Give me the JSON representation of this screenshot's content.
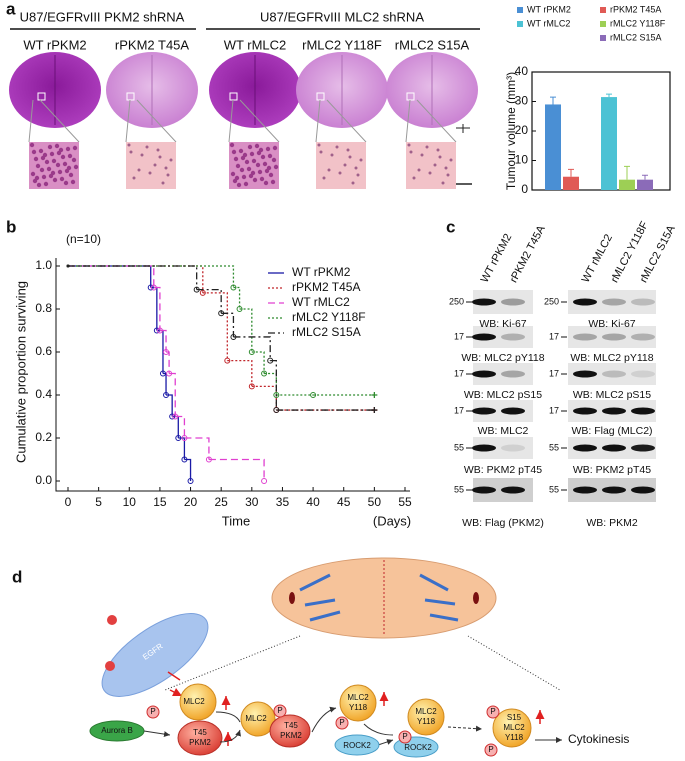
{
  "panel_labels": [
    "a",
    "b",
    "c",
    "d"
  ],
  "panel_a": {
    "groups": [
      "U87/EGFRvIII PKM2 shRNA",
      "U87/EGFRvIII MLC2 shRNA"
    ],
    "images": [
      "WT rPKM2",
      "rPKM2 T45A",
      "WT rMLC2",
      "rMLC2 Y118F",
      "rMLC2 S15A"
    ]
  },
  "chart_data": [
    {
      "type": "bar",
      "ylabel": "Tumour volume (mm³)",
      "categories": [
        null
      ],
      "series": [
        {
          "name": "WT rPKM2",
          "color": "#4a8fd4",
          "values": [
            29
          ],
          "errors": [
            2.5
          ]
        },
        {
          "name": "rPKM2 T45A",
          "color": "#e05a55",
          "values": [
            4.5
          ],
          "errors": [
            2.5
          ]
        },
        {
          "name": "WT rMLC2",
          "color": "#4cc2d4",
          "values": [
            31.5
          ],
          "errors": [
            1
          ]
        },
        {
          "name": "rMLC2 Y118F",
          "color": "#9dcf55",
          "values": [
            3.5
          ],
          "errors": [
            4.5
          ]
        },
        {
          "name": "rMLC2 S15A",
          "color": "#8b6bb8",
          "values": [
            3.5
          ],
          "errors": [
            1.5
          ]
        }
      ],
      "ylim": [
        0,
        40
      ],
      "yticks": [
        0,
        10,
        20,
        30,
        40
      ]
    },
    {
      "type": "line",
      "annotation": "(n=10)",
      "ylabel": "Cumulative proportion surviving",
      "xlabel": "Time",
      "xunit": "(Days)",
      "series": [
        {
          "name": "WT rPKM2",
          "color": "#1a1aa6",
          "linestyle": "solid",
          "x": [
            0,
            13.5,
            14.5,
            15.5,
            16,
            17,
            18,
            19,
            20
          ],
          "values": [
            1.0,
            0.9,
            0.7,
            0.5,
            0.4,
            0.3,
            0.2,
            0.1,
            0
          ]
        },
        {
          "name": "rPKM2 T45A",
          "color": "#c0262b",
          "linestyle": "dotted",
          "x": [
            0,
            22,
            26,
            30,
            34,
            50
          ],
          "values": [
            1.0,
            0.875,
            0.56,
            0.44,
            0.33,
            0.33
          ]
        },
        {
          "name": "WT rMLC2",
          "color": "#e040d0",
          "linestyle": "dashed",
          "x": [
            0,
            14,
            15,
            16,
            16.5,
            17.5,
            19,
            23,
            32
          ],
          "values": [
            1.0,
            0.9,
            0.7,
            0.6,
            0.5,
            0.3,
            0.2,
            0.1,
            0
          ]
        },
        {
          "name": "rMLC2 Y118F",
          "color": "#2e8b2e",
          "linestyle": "dotted",
          "x": [
            0,
            27,
            28,
            30,
            32,
            34,
            40,
            50
          ],
          "values": [
            1.0,
            0.9,
            0.8,
            0.6,
            0.5,
            0.4,
            0.4,
            0.4
          ]
        },
        {
          "name": "rMLC2 S15A",
          "color": "#222222",
          "linestyle": "dashdot",
          "x": [
            0,
            21,
            25,
            27,
            33,
            34,
            50
          ],
          "values": [
            1.0,
            0.89,
            0.78,
            0.67,
            0.56,
            0.33,
            0.33
          ]
        }
      ],
      "xlim": [
        0,
        55
      ],
      "xticks": [
        0,
        5,
        10,
        15,
        20,
        25,
        30,
        35,
        40,
        45,
        50,
        55
      ],
      "ylim": [
        0,
        1.0
      ],
      "yticks": [
        {
          "value": 0,
          "label": "0.0"
        },
        0.2,
        0.4,
        0.6,
        0.8,
        {
          "value": 1.0,
          "label": "1.0"
        }
      ]
    }
  ],
  "panel_c": {
    "columns": [
      "WT rPKM2",
      "rPKM2 T45A",
      "WT rMLC2",
      "rMLC2 Y118F",
      "rMLC2 S15A"
    ],
    "left_blots": [
      {
        "caption": "WB: Ki-67",
        "marker": 250
      },
      {
        "caption": "WB: MLC2 pY118",
        "marker": 17
      },
      {
        "caption": "WB: MLC2 pS15",
        "marker": 17
      },
      {
        "caption": "WB: MLC2",
        "marker": 17
      },
      {
        "caption": "WB: PKM2 pT45",
        "marker": 55
      },
      {
        "caption": "WB: Flag (PKM2)",
        "marker": 55
      }
    ],
    "right_blots": [
      {
        "caption": "WB: Ki-67",
        "marker": 250
      },
      {
        "caption": "WB: MLC2 pY118",
        "marker": 17
      },
      {
        "caption": "WB: MLC2 pS15",
        "marker": 17
      },
      {
        "caption": "WB: Flag (MLC2)",
        "marker": 17
      },
      {
        "caption": "WB: PKM2 pT45",
        "marker": 55
      },
      {
        "caption": "WB: PKM2",
        "marker": 55
      }
    ]
  },
  "panel_d": {
    "labels": [
      "EGFR",
      "MLC2",
      "P",
      "Aurora B",
      "T45",
      "PKM2",
      "MLC2",
      "P",
      "T45",
      "PKM2",
      "MLC2",
      "Y118",
      "P",
      "MLC2",
      "Y118",
      "ROCK2",
      "P",
      "ROCK2",
      "S15",
      "MLC2",
      "Y118",
      "P",
      "P",
      "Cytokinesis"
    ]
  }
}
